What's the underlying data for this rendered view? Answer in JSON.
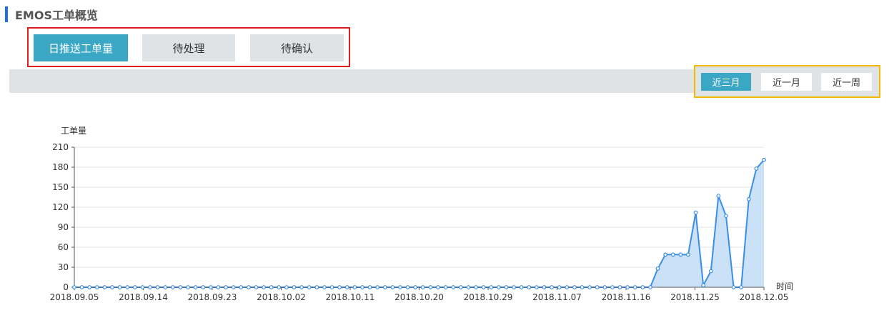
{
  "page": {
    "title": "EMOS工单概览"
  },
  "tabs": [
    {
      "label": "日推送工单量",
      "active": true
    },
    {
      "label": "待处理",
      "active": false
    },
    {
      "label": "待确认",
      "active": false
    }
  ],
  "time_range": [
    {
      "label": "近三月",
      "active": true
    },
    {
      "label": "近一月",
      "active": false
    },
    {
      "label": "近一周",
      "active": false
    }
  ],
  "colors": {
    "accent": "#1e6fe0",
    "tab_active": "#3aa7c4",
    "tab_highlight_border": "#e02020",
    "range_highlight_border": "#f5b800",
    "line": "#3a8ee6",
    "area": "#c8dff8"
  },
  "chart_data": {
    "type": "area",
    "ylabel": "工单量",
    "xlabel": "时间",
    "ylim": [
      0,
      210
    ],
    "yticks": [
      0,
      30,
      60,
      90,
      120,
      150,
      180,
      210
    ],
    "xtick_labels": [
      "2018.09.05",
      "2018.09.14",
      "2018.09.23",
      "2018.10.02",
      "2018.10.11",
      "2018.10.20",
      "2018.10.29",
      "2018.11.07",
      "2018.11.16",
      "2018.11.25",
      "2018.12.05"
    ],
    "grid": true,
    "series": [
      {
        "values": [
          0,
          0,
          0,
          0,
          0,
          0,
          0,
          0,
          0,
          0,
          0,
          0,
          0,
          0,
          0,
          0,
          0,
          0,
          0,
          0,
          0,
          0,
          0,
          0,
          0,
          0,
          0,
          0,
          0,
          0,
          0,
          0,
          0,
          0,
          0,
          0,
          0,
          0,
          0,
          0,
          0,
          0,
          0,
          0,
          0,
          0,
          0,
          0,
          0,
          0,
          0,
          0,
          0,
          0,
          0,
          0,
          0,
          0,
          0,
          0,
          0,
          0,
          0,
          0,
          0,
          0,
          0,
          0,
          0,
          0,
          0,
          0,
          0,
          0,
          0,
          0,
          0,
          28,
          49,
          49,
          49,
          49,
          112,
          3,
          24,
          137,
          107,
          0,
          0,
          132,
          178,
          191
        ]
      }
    ]
  }
}
